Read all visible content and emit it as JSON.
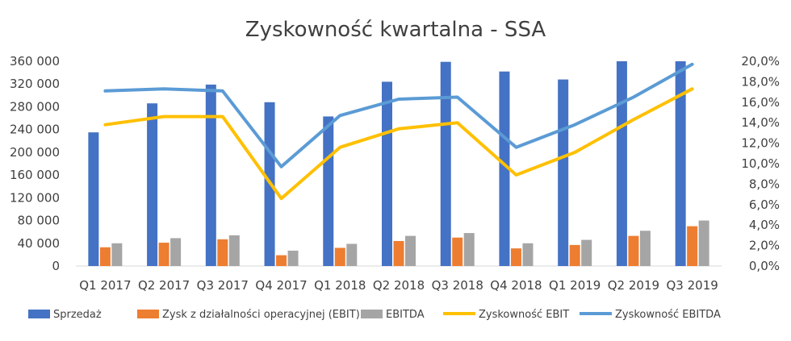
{
  "chart_data": {
    "type": "bar",
    "title": "Zyskowność kwartalna - SSA",
    "categories": [
      "Q1 2017",
      "Q2 2017",
      "Q3 2017",
      "Q4 2017",
      "Q1 2018",
      "Q2 2018",
      "Q3 2018",
      "Q4 2018",
      "Q1 2019",
      "Q2 2019",
      "Q3 2019"
    ],
    "series": [
      {
        "name": "Sprzedaż",
        "kind": "bar",
        "axis": "left",
        "color": "#4472C4",
        "values": [
          235000,
          286000,
          319000,
          288000,
          263000,
          324000,
          359000,
          342000,
          328000,
          360000,
          360000
        ]
      },
      {
        "name": "Zysk z działalności operacyjnej (EBIT)",
        "kind": "bar",
        "axis": "left",
        "color": "#ED7D31",
        "values": [
          33000,
          41000,
          47000,
          19000,
          32000,
          44000,
          50000,
          31000,
          37000,
          53000,
          70000
        ]
      },
      {
        "name": "EBITDA",
        "kind": "bar",
        "axis": "left",
        "color": "#A5A5A5",
        "values": [
          40000,
          49000,
          54000,
          27000,
          39000,
          53000,
          58000,
          40000,
          46000,
          62000,
          80000
        ]
      },
      {
        "name": "Zyskowność EBIT",
        "kind": "line",
        "axis": "right",
        "color": "#FFC000",
        "values": [
          0.138,
          0.146,
          0.146,
          0.066,
          0.116,
          0.134,
          0.14,
          0.089,
          0.111,
          0.143,
          0.173
        ]
      },
      {
        "name": "Zyskowność EBITDA",
        "kind": "line",
        "axis": "right",
        "color": "#5B9BD5",
        "values": [
          0.171,
          0.173,
          0.171,
          0.097,
          0.147,
          0.163,
          0.165,
          0.116,
          0.138,
          0.165,
          0.197
        ]
      }
    ],
    "ylim": [
      0,
      360000
    ],
    "y_ticks": [
      0,
      40000,
      80000,
      120000,
      160000,
      200000,
      240000,
      280000,
      320000,
      360000
    ],
    "y_tick_labels": [
      "0",
      "40 000",
      "80 000",
      "120 000",
      "160 000",
      "200 000",
      "240 000",
      "280 000",
      "320 000",
      "360 000"
    ],
    "y2lim": [
      0,
      0.2
    ],
    "y2_ticks": [
      0,
      0.02,
      0.04,
      0.06,
      0.08,
      0.1,
      0.12,
      0.14,
      0.16,
      0.18,
      0.2
    ],
    "y2_tick_labels": [
      "0,0%",
      "2,0%",
      "4,0%",
      "6,0%",
      "8,0%",
      "10,0%",
      "12,0%",
      "14,0%",
      "16,0%",
      "18,0%",
      "20,0%"
    ],
    "grid": false,
    "legend_position": "bottom"
  }
}
